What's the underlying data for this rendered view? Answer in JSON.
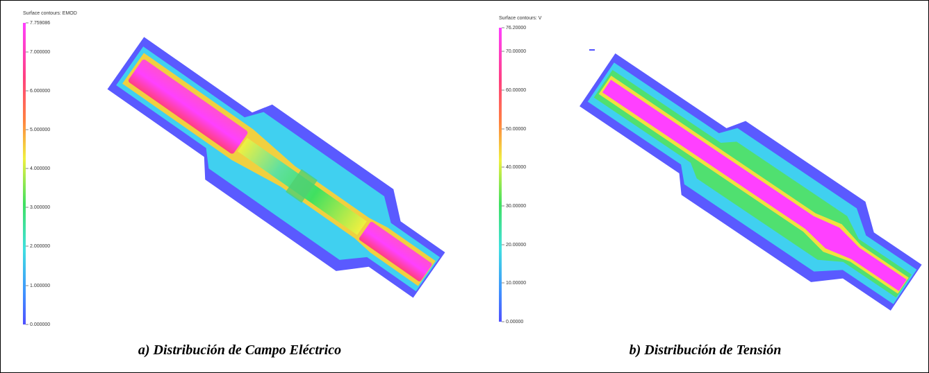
{
  "panels": [
    {
      "colorbar": {
        "title": "Surface contours: EMOD",
        "ticks": [
          "7.759086",
          "7.000000",
          "6.000000",
          "5.000000",
          "4.000000",
          "3.000000",
          "2.000000",
          "1.000000",
          "0.000000"
        ]
      },
      "caption": "a) Distribución de Campo Eléctrico"
    },
    {
      "colorbar": {
        "title": "Surface contours: V",
        "ticks": [
          "76.20000",
          "70.00000",
          "60.00000",
          "50.00000",
          "40.00000",
          "30.00000",
          "20.00000",
          "10.00000",
          "0.00000"
        ]
      },
      "caption": "b) Distribución de Tensión"
    }
  ]
}
